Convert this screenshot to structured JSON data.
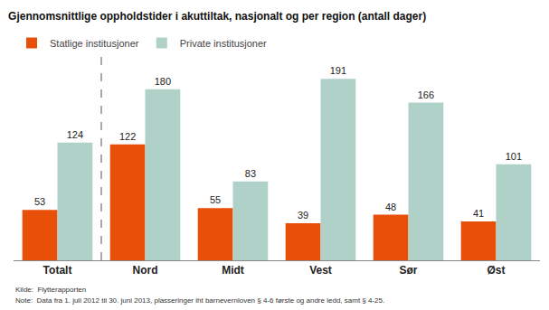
{
  "chart_data": {
    "type": "bar",
    "title": "Gjennomsnittlige oppholdstider i akuttiltak, nasjonalt og per region (antall dager)",
    "categories": [
      "Totalt",
      "Nord",
      "Midt",
      "Vest",
      "Sør",
      "Øst"
    ],
    "series": [
      {
        "name": "Statlige institusjoner",
        "color": "#e8500a",
        "values": [
          53,
          122,
          55,
          39,
          48,
          41
        ]
      },
      {
        "name": "Private institusjoner",
        "color": "#afd1c8",
        "values": [
          124,
          180,
          83,
          191,
          166,
          101
        ]
      }
    ],
    "ylim": [
      0,
      215
    ],
    "data_labels": true,
    "tick_labels": "x",
    "grid": false,
    "legend": "upper left",
    "annotations": [
      "Kilde:  Flytterapporten",
      "Note:  Data fra 1. juli 2012 til 30. juni 2013, plasseringer iht barnevernloven § 4-6 første og andre ledd, samt § 4-25."
    ]
  }
}
